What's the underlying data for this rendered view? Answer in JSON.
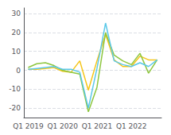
{
  "chart_data": {
    "type": "line",
    "categories": [
      "Q1 2019",
      null,
      null,
      null,
      "Q1 2020",
      null,
      null,
      null,
      "Q1 2021",
      null,
      null,
      null,
      "Q1 2022",
      null,
      null,
      null
    ],
    "series": [
      {
        "color": "#f5c518",
        "values": [
          0.5,
          0.5,
          1.0,
          1.5,
          -0.5,
          -1.0,
          5.0,
          -10.5,
          5.0,
          19.0,
          5.5,
          2.0,
          2.0,
          7.5,
          5.5,
          5.5
        ]
      },
      {
        "color": "#8dc63f",
        "values": [
          1.5,
          3.5,
          4.0,
          2.5,
          0.0,
          -1.0,
          -2.0,
          -22.0,
          -9.0,
          20.0,
          8.0,
          5.0,
          3.0,
          9.0,
          -1.5,
          5.5
        ]
      },
      {
        "color": "#5bc8e8",
        "values": [
          0.5,
          1.0,
          1.5,
          2.0,
          0.5,
          0.5,
          -1.0,
          -20.0,
          1.0,
          25.0,
          5.0,
          3.0,
          2.0,
          4.0,
          2.0,
          5.5
        ]
      }
    ],
    "ylim": [
      -25,
      33
    ],
    "yticks": [
      -20,
      -10,
      0,
      10,
      20,
      30
    ],
    "grid": true
  }
}
